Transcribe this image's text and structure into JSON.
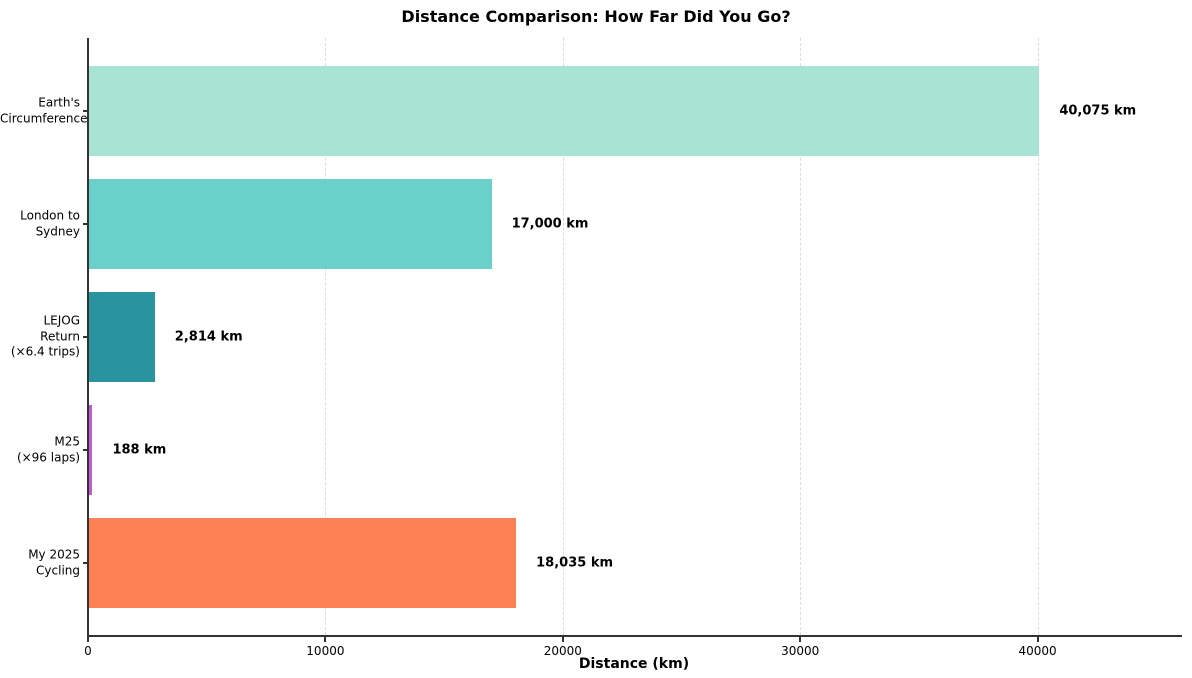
{
  "chart_data": {
    "type": "bar",
    "orientation": "horizontal",
    "title": "Distance Comparison: How Far Did You Go?",
    "xlabel": "Distance (km)",
    "ylabel": "",
    "categories": [
      "Earth's\nCircumference",
      "London to\nSydney",
      "LEJOG Return\n(×6.4 trips)",
      "M25\n(×96 laps)",
      "My 2025\nCycling"
    ],
    "values": [
      40075,
      17000,
      2814,
      188,
      18035
    ],
    "value_labels": [
      "40,075 km",
      "17,000 km",
      "2,814 km",
      "188 km",
      "18,035 km"
    ],
    "bar_colors": [
      "#a8e4d4",
      "#6ad1ca",
      "#2a93a0",
      "#c15ecf",
      "#fd8154"
    ],
    "xlim": [
      0,
      46000
    ],
    "x_ticks": [
      0,
      10000,
      20000,
      30000,
      40000
    ],
    "x_tick_labels": [
      "0",
      "10000",
      "20000",
      "30000",
      "40000"
    ],
    "grid": "vertical-dashed",
    "legend": "none"
  },
  "styles": {
    "axis_color": "#333333",
    "grid_color": "#dcdcdc",
    "text_color": "#000000",
    "background": "#ffffff"
  }
}
